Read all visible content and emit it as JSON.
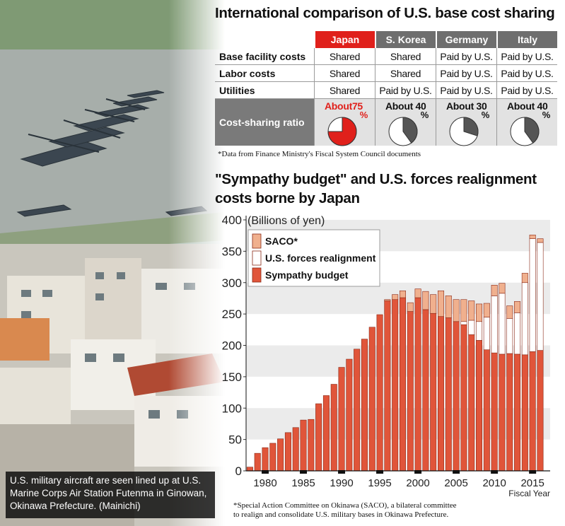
{
  "photo": {
    "caption": "U.S. military aircraft are seen lined up at U.S. Marine Corps Air Station Futenma in Ginowan, Okinawa Prefecture. (Mainichi)",
    "colors": {
      "sky": "#b9cbd2",
      "runway": "#9fa6a3",
      "grass": "#6c8a58",
      "building_white": "#e9e6df",
      "building_orange": "#d9894f",
      "roof_red": "#b04a33"
    }
  },
  "table": {
    "title": "International comparison of U.S. base cost sharing",
    "countries": [
      "Japan",
      "S. Korea",
      "Germany",
      "Italy"
    ],
    "rows": [
      {
        "label": "Base facility costs",
        "values": [
          "Shared",
          "Shared",
          "Paid by U.S.",
          "Paid by U.S."
        ]
      },
      {
        "label": "Labor costs",
        "values": [
          "Shared",
          "Shared",
          "Paid by U.S.",
          "Paid by U.S."
        ]
      },
      {
        "label": "Utilities",
        "values": [
          "Shared",
          "Paid by U.S.",
          "Paid by U.S.",
          "Paid by U.S."
        ]
      }
    ],
    "ratio_label": "Cost-sharing ratio",
    "ratios": [
      {
        "prefix": "About",
        "value": "75",
        "unit": "%",
        "fraction": 0.75,
        "color": "#e0201b"
      },
      {
        "prefix": "About",
        "value": "40",
        "unit": "%",
        "fraction": 0.4,
        "color": "#555555"
      },
      {
        "prefix": "About",
        "value": "30",
        "unit": "%",
        "fraction": 0.3,
        "color": "#555555"
      },
      {
        "prefix": "About",
        "value": "40",
        "unit": "%",
        "fraction": 0.4,
        "color": "#555555"
      }
    ],
    "note": "*Data from Finance Ministry's Fiscal System Council documents",
    "colors": {
      "japan_header": "#e0201b",
      "other_header": "#6e6e6e"
    }
  },
  "chart": {
    "title_line1": "\"Sympathy budget\" and U.S. forces realignment",
    "title_line2": "costs borne by Japan",
    "footnote_line1": "*Special Action Committee on Okinawa (SACO), a bilateral committee",
    "footnote_line2": "to realign and consolidate U.S. military bases in Okinawa Prefecture."
  },
  "chart_data": {
    "type": "bar",
    "stacked": true,
    "ylabel": "(Billions of yen)",
    "xlabel": "Fiscal Year",
    "ylim": [
      0,
      400
    ],
    "yticks": [
      0,
      50,
      100,
      150,
      200,
      250,
      300,
      350,
      400
    ],
    "xticks": [
      1980,
      1985,
      1990,
      1995,
      2000,
      2005,
      2010,
      2015
    ],
    "grid": "horizontal bands",
    "legend_position": "top-left",
    "x": [
      1978,
      1979,
      1980,
      1981,
      1982,
      1983,
      1984,
      1985,
      1986,
      1987,
      1988,
      1989,
      1990,
      1991,
      1992,
      1993,
      1994,
      1995,
      1996,
      1997,
      1998,
      1999,
      2000,
      2001,
      2002,
      2003,
      2004,
      2005,
      2006,
      2007,
      2008,
      2009,
      2010,
      2011,
      2012,
      2013,
      2014,
      2015,
      2016
    ],
    "series": [
      {
        "name": "Sympathy budget",
        "color": "#e0553a",
        "values": [
          6,
          28,
          37,
          44,
          51,
          61,
          69,
          81,
          82,
          107,
          120,
          138,
          165,
          178,
          194,
          210,
          229,
          249,
          271,
          273,
          276,
          254,
          276,
          257,
          251,
          246,
          244,
          238,
          233,
          217,
          208,
          193,
          188,
          186,
          187,
          186,
          185,
          190,
          192
        ]
      },
      {
        "name": "U.S. forces realignment",
        "color": "#ffffff",
        "values": [
          0,
          0,
          0,
          0,
          0,
          0,
          0,
          0,
          0,
          0,
          0,
          0,
          0,
          0,
          0,
          0,
          0,
          0,
          0,
          0,
          0,
          0,
          0,
          0,
          0,
          0,
          0,
          0,
          5,
          23,
          30,
          52,
          91,
          97,
          56,
          66,
          115,
          180,
          172
        ]
      },
      {
        "name": "SACO*",
        "color": "#f0b08e",
        "values": [
          0,
          0,
          0,
          0,
          0,
          0,
          0,
          0,
          0,
          0,
          0,
          0,
          0,
          0,
          0,
          0,
          0,
          0,
          2,
          8,
          11,
          14,
          14,
          29,
          30,
          41,
          35,
          35,
          35,
          31,
          28,
          22,
          17,
          16,
          20,
          18,
          15,
          6,
          6
        ]
      }
    ],
    "colors": {
      "band": "#ebebeb",
      "bar_outline": "#8a2a18"
    }
  }
}
